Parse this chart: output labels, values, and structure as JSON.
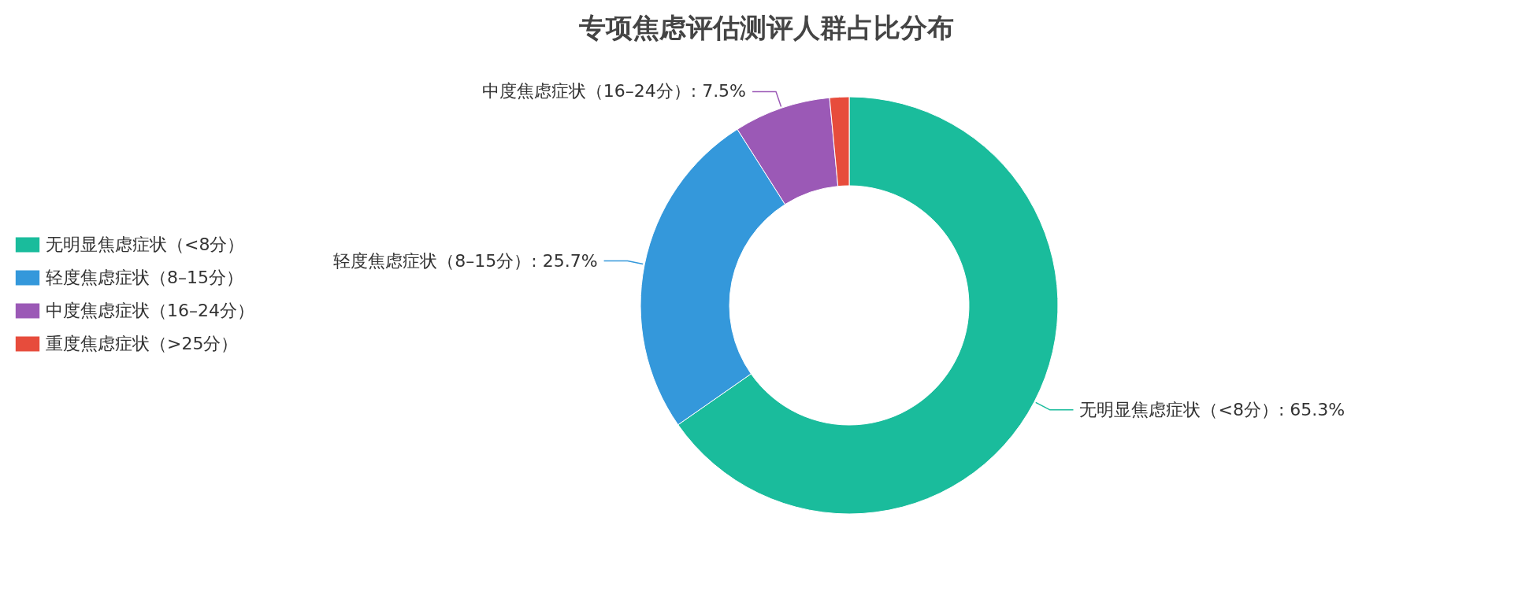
{
  "chart_data": {
    "type": "donut",
    "title": "专项焦虑评估测评人群占比分布",
    "categories": [
      "无明显焦虑症状（<8分）",
      "轻度焦虑症状（8–15分）",
      "中度焦虑症状（16–24分）",
      "重度焦虑症状（>25分）"
    ],
    "values": [
      65.3,
      25.7,
      7.5,
      1.5
    ],
    "colors": [
      "#1abc9c",
      "#3498db",
      "#9b59b6",
      "#e74c3c"
    ],
    "value_labels": [
      "无明显焦虑症状（<8分）: 65.3%",
      "轻度焦虑症状（8–15分）: 25.7%",
      "中度焦虑症状（16–24分）: 7.5%",
      null
    ],
    "legend": "left"
  }
}
